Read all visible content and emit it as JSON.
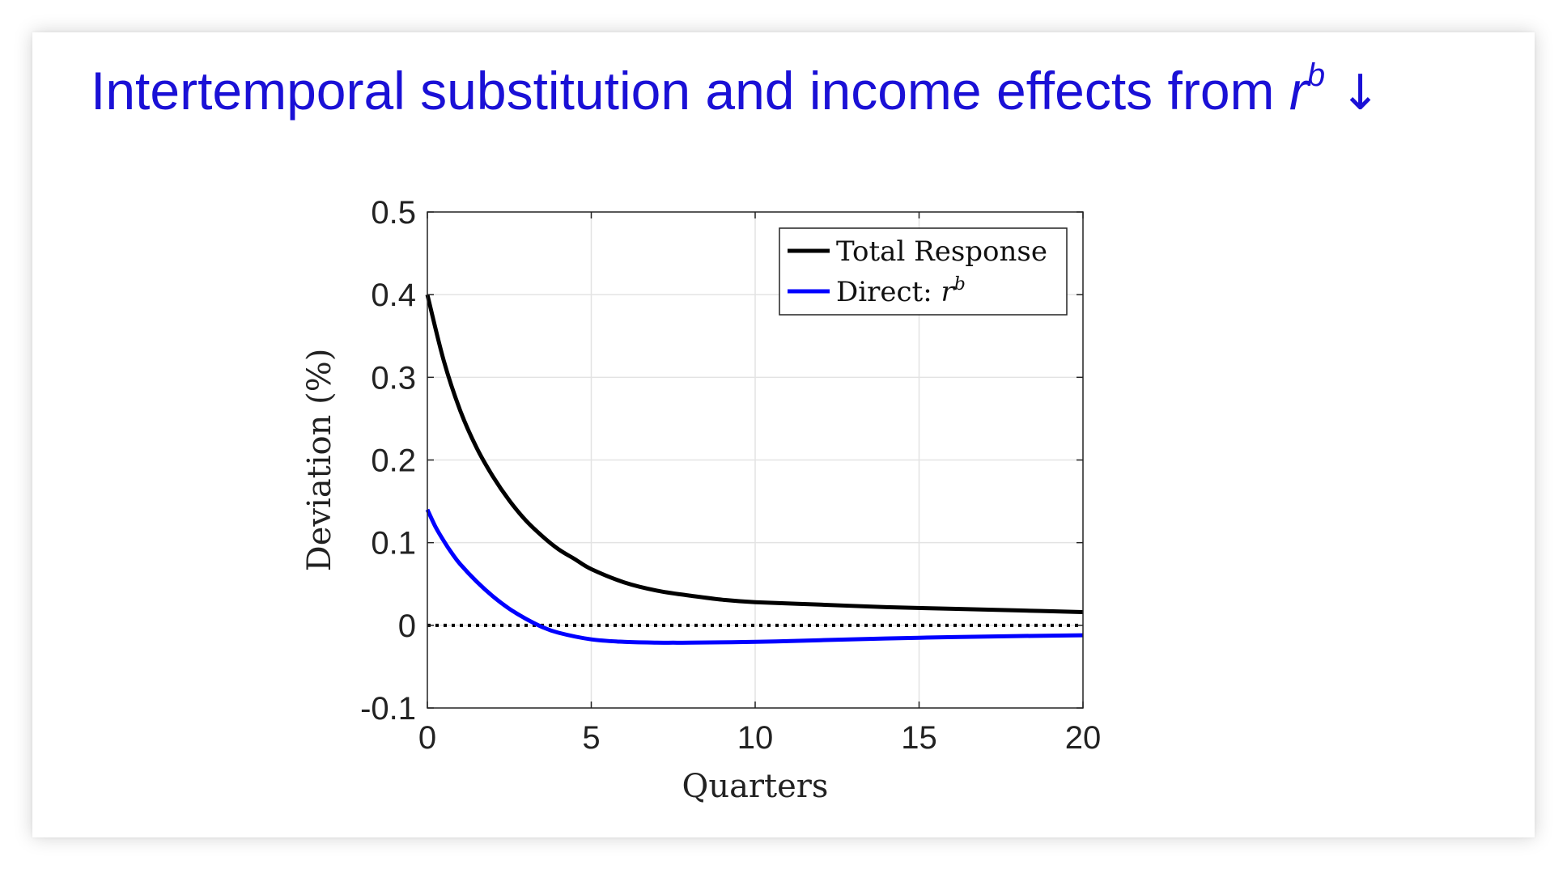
{
  "slide": {
    "title_text": "Intertemporal substitution and income effects from",
    "title_var": "r",
    "title_var_sup": "b",
    "title_arrow": "↓"
  },
  "chart_data": {
    "type": "line",
    "xlabel": "Quarters",
    "ylabel": "Deviation (%)",
    "xlim": [
      0,
      20
    ],
    "ylim": [
      -0.1,
      0.5
    ],
    "xticks": [
      0,
      5,
      10,
      15,
      20
    ],
    "xtick_labels": [
      "0",
      "5",
      "10",
      "15",
      "20"
    ],
    "yticks": [
      -0.1,
      0,
      0.1,
      0.2,
      0.3,
      0.4,
      0.5
    ],
    "ytick_labels": [
      "-0.1",
      "0",
      "0.1",
      "0.2",
      "0.3",
      "0.4",
      "0.5"
    ],
    "grid": true,
    "legend_position": "top-right",
    "reference_line": {
      "y": 0,
      "style": "dotted",
      "color": "#000000"
    },
    "series": [
      {
        "name": "Total Response",
        "color": "#000000",
        "x": [
          0,
          0.5,
          1,
          1.5,
          2,
          2.5,
          3,
          3.5,
          4,
          4.5,
          5,
          6,
          7,
          8,
          9,
          10,
          12,
          14,
          16,
          18,
          20
        ],
        "values": [
          0.4,
          0.32,
          0.26,
          0.215,
          0.18,
          0.151,
          0.127,
          0.108,
          0.092,
          0.08,
          0.068,
          0.052,
          0.042,
          0.036,
          0.031,
          0.028,
          0.025,
          0.022,
          0.02,
          0.018,
          0.016
        ]
      },
      {
        "name": "Direct: ",
        "name_var": "r",
        "name_sup": "b",
        "color": "#0000ff",
        "x": [
          0,
          0.25,
          0.5,
          0.75,
          1,
          1.5,
          2,
          2.5,
          3,
          3.5,
          4,
          5,
          6,
          7,
          7.5,
          8,
          10,
          12,
          15,
          18,
          20
        ],
        "values": [
          0.14,
          0.119,
          0.102,
          0.087,
          0.074,
          0.053,
          0.035,
          0.02,
          0.008,
          -0.002,
          -0.009,
          -0.017,
          -0.02,
          -0.021,
          -0.021,
          -0.021,
          -0.02,
          -0.018,
          -0.015,
          -0.013,
          -0.012
        ]
      }
    ]
  }
}
